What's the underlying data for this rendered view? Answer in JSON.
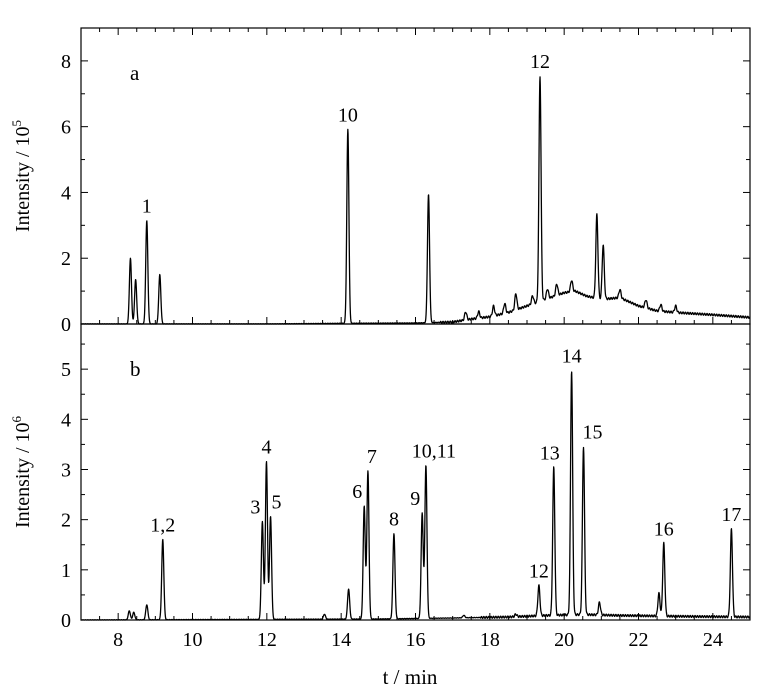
{
  "chart_data": {
    "type": "line",
    "xlabel": "t / min",
    "xlim": [
      7,
      25
    ],
    "xticks": [
      8,
      10,
      12,
      14,
      16,
      18,
      20,
      22,
      24
    ],
    "panels": [
      {
        "panel_label": "a",
        "ylabel": "Intensity / 10^5",
        "ylabel_base": "Intensity / 10",
        "ylabel_exp": "5",
        "ylim": [
          0,
          9
        ],
        "yticks": [
          0,
          2,
          4,
          6,
          8
        ],
        "baseline": [
          [
            7.0,
            0
          ],
          [
            8.0,
            0
          ],
          [
            12.0,
            0
          ],
          [
            14.0,
            0.02
          ],
          [
            16.0,
            0.03
          ],
          [
            17.0,
            0.06
          ],
          [
            17.5,
            0.15
          ],
          [
            18.0,
            0.22
          ],
          [
            18.5,
            0.35
          ],
          [
            19.0,
            0.55
          ],
          [
            19.5,
            0.75
          ],
          [
            20.0,
            0.95
          ],
          [
            20.3,
            1.0
          ],
          [
            20.6,
            0.85
          ],
          [
            21.0,
            0.75
          ],
          [
            21.5,
            0.8
          ],
          [
            22.0,
            0.55
          ],
          [
            22.5,
            0.4
          ],
          [
            23.0,
            0.35
          ],
          [
            24.0,
            0.28
          ],
          [
            25.0,
            0.2
          ]
        ],
        "peaks": [
          {
            "t": 8.33,
            "h": 2.0
          },
          {
            "t": 8.47,
            "h": 1.35
          },
          {
            "t": 8.77,
            "h": 3.15,
            "label": "1"
          },
          {
            "t": 9.12,
            "h": 1.5
          },
          {
            "t": 14.18,
            "h": 5.9,
            "label": "10"
          },
          {
            "t": 16.35,
            "h": 3.9
          },
          {
            "t": 17.35,
            "h": 0.25
          },
          {
            "t": 17.7,
            "h": 0.2
          },
          {
            "t": 18.1,
            "h": 0.3
          },
          {
            "t": 18.4,
            "h": 0.3
          },
          {
            "t": 18.7,
            "h": 0.5
          },
          {
            "t": 19.15,
            "h": 0.25
          },
          {
            "t": 19.35,
            "h": 6.85,
            "label": "12"
          },
          {
            "t": 19.55,
            "h": 0.3
          },
          {
            "t": 19.8,
            "h": 0.35
          },
          {
            "t": 20.2,
            "h": 0.35
          },
          {
            "t": 20.88,
            "h": 2.55
          },
          {
            "t": 21.05,
            "h": 1.65
          },
          {
            "t": 21.5,
            "h": 0.25
          },
          {
            "t": 22.2,
            "h": 0.25
          },
          {
            "t": 22.6,
            "h": 0.2
          },
          {
            "t": 23.0,
            "h": 0.2
          }
        ]
      },
      {
        "panel_label": "b",
        "ylabel": "Intensity / 10^6",
        "ylabel_base": "Intensity / 10",
        "ylabel_exp": "6",
        "ylim": [
          0,
          5.9
        ],
        "yticks": [
          0,
          1,
          2,
          3,
          4,
          5
        ],
        "baseline": [
          [
            7.0,
            0
          ],
          [
            15.0,
            0.02
          ],
          [
            17.0,
            0.04
          ],
          [
            18.5,
            0.06
          ],
          [
            19.5,
            0.09
          ],
          [
            20.5,
            0.11
          ],
          [
            21.5,
            0.09
          ],
          [
            22.5,
            0.08
          ],
          [
            23.5,
            0.07
          ],
          [
            25.0,
            0.06
          ]
        ],
        "peaks": [
          {
            "t": 8.3,
            "h": 0.18
          },
          {
            "t": 8.42,
            "h": 0.15
          },
          {
            "t": 8.77,
            "h": 0.3
          },
          {
            "t": 9.2,
            "h": 1.6,
            "label": "1,2"
          },
          {
            "t": 11.88,
            "h": 1.95,
            "label": "3"
          },
          {
            "t": 11.99,
            "h": 3.15,
            "label": "4"
          },
          {
            "t": 12.1,
            "h": 2.05,
            "label": "5"
          },
          {
            "t": 13.55,
            "h": 0.1
          },
          {
            "t": 14.2,
            "h": 0.6
          },
          {
            "t": 14.62,
            "h": 2.25,
            "label": "6"
          },
          {
            "t": 14.72,
            "h": 2.95,
            "label": "7"
          },
          {
            "t": 15.42,
            "h": 1.7,
            "label": "8"
          },
          {
            "t": 16.18,
            "h": 2.1,
            "label": "9"
          },
          {
            "t": 16.28,
            "h": 3.05,
            "label": "10,11"
          },
          {
            "t": 17.3,
            "h": 0.05
          },
          {
            "t": 18.7,
            "h": 0.05
          },
          {
            "t": 19.32,
            "h": 0.6,
            "label": "12"
          },
          {
            "t": 19.72,
            "h": 2.95,
            "label": "13"
          },
          {
            "t": 20.2,
            "h": 4.87,
            "label": "14"
          },
          {
            "t": 20.52,
            "h": 3.35,
            "label": "15"
          },
          {
            "t": 20.95,
            "h": 0.25
          },
          {
            "t": 22.55,
            "h": 0.45
          },
          {
            "t": 22.68,
            "h": 1.45,
            "label": "16"
          },
          {
            "t": 24.5,
            "h": 1.75,
            "label": "17"
          }
        ]
      }
    ]
  }
}
